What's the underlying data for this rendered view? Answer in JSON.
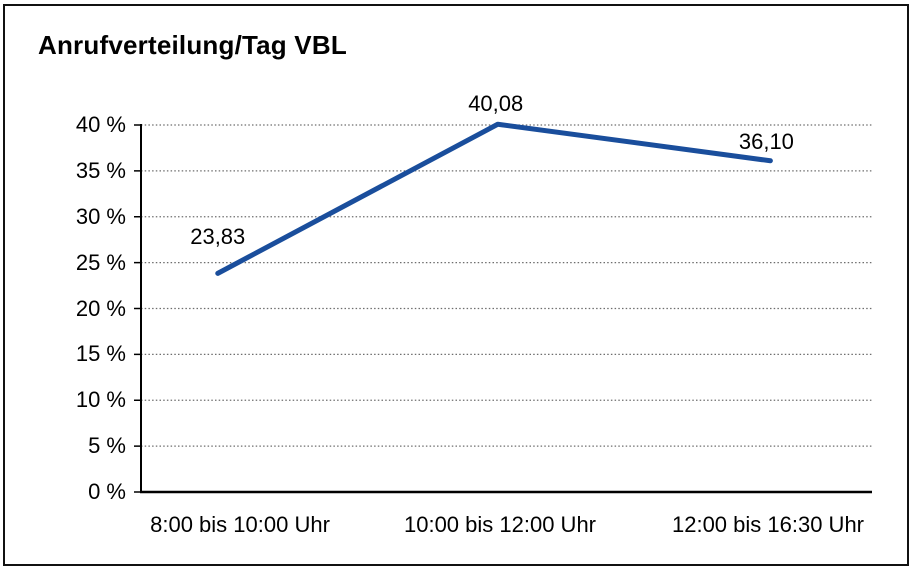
{
  "window": {
    "background": "#ffffff",
    "frame_border_color": "#111111"
  },
  "chart_data": {
    "type": "line",
    "title": "Anrufverteilung/Tag VBL",
    "categories": [
      "8:00 bis 10:00 Uhr",
      "10:00 bis 12:00 Uhr",
      "12:00 bis 16:30 Uhr"
    ],
    "values": [
      23.83,
      40.08,
      36.1
    ],
    "point_labels": [
      "23,83",
      "40,08",
      "36,10"
    ],
    "xlabel": "",
    "ylabel": "",
    "ylim": [
      0,
      40
    ],
    "ytick_step": 5,
    "ytick_labels": [
      "0 %",
      "5 %",
      "10 %",
      "15 %",
      "20 %",
      "25 %",
      "30 %",
      "35 %",
      "40 %"
    ],
    "grid": "horizontal-dotted",
    "legend": "none",
    "line_color": "#1A4E9C",
    "grid_color": "#6E6E6E",
    "axis_color": "#000000",
    "text_color": "#000000"
  }
}
